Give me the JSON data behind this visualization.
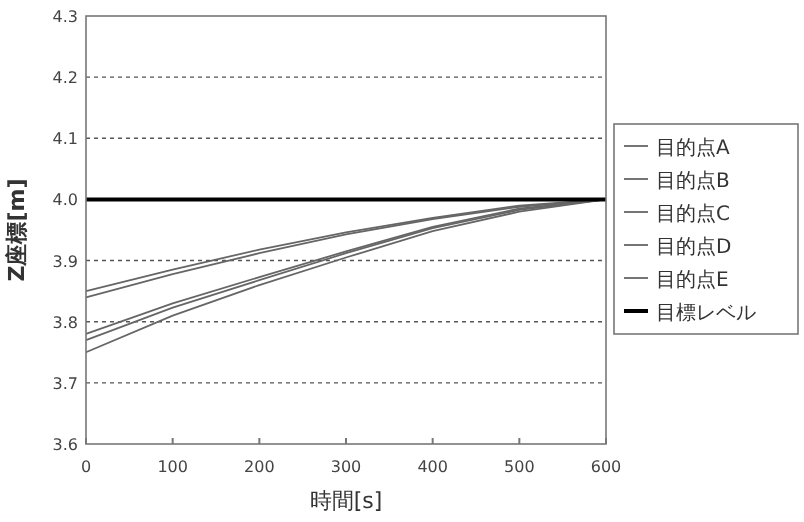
{
  "chart_data": {
    "type": "line",
    "xlabel": "時間[s]",
    "ylabel": "Z座標[m]",
    "x": [
      0,
      100,
      200,
      300,
      400,
      500,
      600
    ],
    "series": [
      {
        "name": "目的点A",
        "color": "#666666",
        "values": [
          3.85,
          3.885,
          3.918,
          3.946,
          3.97,
          3.99,
          4.0
        ]
      },
      {
        "name": "目的点B",
        "color": "#666666",
        "values": [
          3.84,
          3.878,
          3.912,
          3.943,
          3.968,
          3.988,
          4.0
        ]
      },
      {
        "name": "目的点C",
        "color": "#666666",
        "values": [
          3.78,
          3.83,
          3.873,
          3.915,
          3.955,
          3.985,
          4.0
        ]
      },
      {
        "name": "目的点D",
        "color": "#666666",
        "values": [
          3.77,
          3.823,
          3.868,
          3.912,
          3.953,
          3.983,
          4.0
        ]
      },
      {
        "name": "目的点E",
        "color": "#666666",
        "values": [
          3.75,
          3.81,
          3.86,
          3.905,
          3.948,
          3.98,
          4.0
        ]
      },
      {
        "name": "目標レベル",
        "color": "#000000",
        "x": [
          0,
          600
        ],
        "values": [
          4.0,
          4.0
        ]
      }
    ],
    "xlim": [
      0,
      600
    ],
    "xticks": [
      0,
      100,
      200,
      300,
      400,
      500,
      600
    ],
    "ylim": [
      3.6,
      4.3
    ],
    "yticks": [
      {
        "value": 3.6,
        "label": "3.6"
      },
      {
        "value": 3.7,
        "label": "3.7"
      },
      {
        "value": 3.8,
        "label": "3.8"
      },
      {
        "value": 3.9,
        "label": "3.9"
      },
      {
        "value": 4.0,
        "label": "4.0"
      },
      {
        "value": 4.1,
        "label": "4.1"
      },
      {
        "value": 4.2,
        "label": "4.2"
      },
      {
        "value": 4.3,
        "label": "4.3"
      }
    ],
    "grid": "y",
    "legend": "right",
    "marker": "none",
    "line_style": "solid"
  }
}
